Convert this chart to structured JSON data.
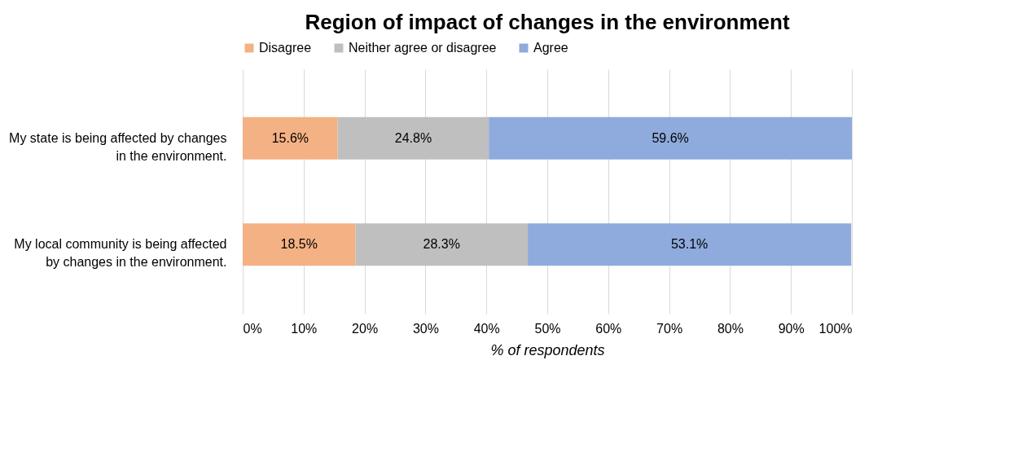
{
  "chart_data": {
    "type": "bar",
    "orientation": "horizontal",
    "stacked": true,
    "title": "Region of impact of changes in the environment",
    "xlabel": "% of respondents",
    "categories": [
      "My state is being affected by changes in the environment.",
      "My local community is being affected by changes in the environment."
    ],
    "series": [
      {
        "name": "Disagree",
        "color": "#f4b183",
        "values": [
          15.6,
          18.5
        ],
        "value_labels": [
          "15.6%",
          "18.5%"
        ]
      },
      {
        "name": "Neither agree or disagree",
        "color": "#bfbfbf",
        "values": [
          24.8,
          28.3
        ],
        "value_labels": [
          "24.8%",
          "28.3%"
        ]
      },
      {
        "name": "Agree",
        "color": "#8faadc",
        "values": [
          59.6,
          53.1
        ],
        "value_labels": [
          "59.6%",
          "53.1%"
        ]
      }
    ],
    "xlim": [
      0,
      100
    ],
    "xticks": [
      {
        "value": 0,
        "label": "0%"
      },
      {
        "value": 10,
        "label": "10%"
      },
      {
        "value": 20,
        "label": "20%"
      },
      {
        "value": 30,
        "label": "30%"
      },
      {
        "value": 40,
        "label": "40%"
      },
      {
        "value": 50,
        "label": "50%"
      },
      {
        "value": 60,
        "label": "60%"
      },
      {
        "value": 70,
        "label": "70%"
      },
      {
        "value": 80,
        "label": "80%"
      },
      {
        "value": 90,
        "label": "90%"
      },
      {
        "value": 100,
        "label": "100%"
      }
    ],
    "grid": "x",
    "legend": "top"
  }
}
